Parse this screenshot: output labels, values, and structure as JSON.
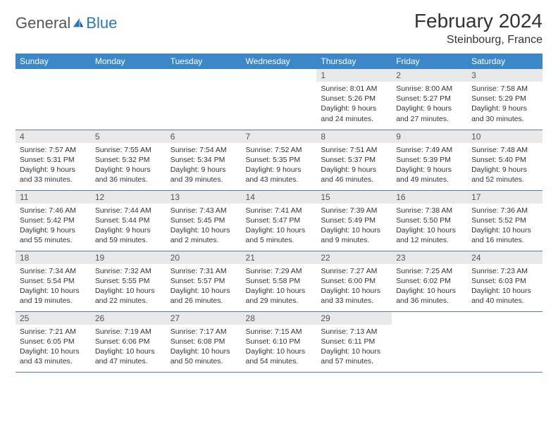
{
  "brand": {
    "part1": "General",
    "part2": "Blue"
  },
  "title": "February 2024",
  "location": "Steinbourg, France",
  "colors": {
    "header_bg": "#3b87c8",
    "header_text": "#ffffff",
    "daynum_bg": "#e9e9e9",
    "daynum_text": "#555555",
    "body_text": "#333333",
    "row_border": "#5a7a9a",
    "brand_gray": "#555555",
    "brand_blue": "#2b7ac0",
    "page_bg": "#ffffff"
  },
  "fonts": {
    "title_size": 28,
    "location_size": 16,
    "dayhead_size": 12,
    "daynum_size": 12,
    "cell_size": 10.5
  },
  "day_headers": [
    "Sunday",
    "Monday",
    "Tuesday",
    "Wednesday",
    "Thursday",
    "Friday",
    "Saturday"
  ],
  "weeks": [
    [
      null,
      null,
      null,
      null,
      {
        "num": "1",
        "sunrise": "8:01 AM",
        "sunset": "5:26 PM",
        "daylight": "9 hours and 24 minutes."
      },
      {
        "num": "2",
        "sunrise": "8:00 AM",
        "sunset": "5:27 PM",
        "daylight": "9 hours and 27 minutes."
      },
      {
        "num": "3",
        "sunrise": "7:58 AM",
        "sunset": "5:29 PM",
        "daylight": "9 hours and 30 minutes."
      }
    ],
    [
      {
        "num": "4",
        "sunrise": "7:57 AM",
        "sunset": "5:31 PM",
        "daylight": "9 hours and 33 minutes."
      },
      {
        "num": "5",
        "sunrise": "7:55 AM",
        "sunset": "5:32 PM",
        "daylight": "9 hours and 36 minutes."
      },
      {
        "num": "6",
        "sunrise": "7:54 AM",
        "sunset": "5:34 PM",
        "daylight": "9 hours and 39 minutes."
      },
      {
        "num": "7",
        "sunrise": "7:52 AM",
        "sunset": "5:35 PM",
        "daylight": "9 hours and 43 minutes."
      },
      {
        "num": "8",
        "sunrise": "7:51 AM",
        "sunset": "5:37 PM",
        "daylight": "9 hours and 46 minutes."
      },
      {
        "num": "9",
        "sunrise": "7:49 AM",
        "sunset": "5:39 PM",
        "daylight": "9 hours and 49 minutes."
      },
      {
        "num": "10",
        "sunrise": "7:48 AM",
        "sunset": "5:40 PM",
        "daylight": "9 hours and 52 minutes."
      }
    ],
    [
      {
        "num": "11",
        "sunrise": "7:46 AM",
        "sunset": "5:42 PM",
        "daylight": "9 hours and 55 minutes."
      },
      {
        "num": "12",
        "sunrise": "7:44 AM",
        "sunset": "5:44 PM",
        "daylight": "9 hours and 59 minutes."
      },
      {
        "num": "13",
        "sunrise": "7:43 AM",
        "sunset": "5:45 PM",
        "daylight": "10 hours and 2 minutes."
      },
      {
        "num": "14",
        "sunrise": "7:41 AM",
        "sunset": "5:47 PM",
        "daylight": "10 hours and 5 minutes."
      },
      {
        "num": "15",
        "sunrise": "7:39 AM",
        "sunset": "5:49 PM",
        "daylight": "10 hours and 9 minutes."
      },
      {
        "num": "16",
        "sunrise": "7:38 AM",
        "sunset": "5:50 PM",
        "daylight": "10 hours and 12 minutes."
      },
      {
        "num": "17",
        "sunrise": "7:36 AM",
        "sunset": "5:52 PM",
        "daylight": "10 hours and 16 minutes."
      }
    ],
    [
      {
        "num": "18",
        "sunrise": "7:34 AM",
        "sunset": "5:54 PM",
        "daylight": "10 hours and 19 minutes."
      },
      {
        "num": "19",
        "sunrise": "7:32 AM",
        "sunset": "5:55 PM",
        "daylight": "10 hours and 22 minutes."
      },
      {
        "num": "20",
        "sunrise": "7:31 AM",
        "sunset": "5:57 PM",
        "daylight": "10 hours and 26 minutes."
      },
      {
        "num": "21",
        "sunrise": "7:29 AM",
        "sunset": "5:58 PM",
        "daylight": "10 hours and 29 minutes."
      },
      {
        "num": "22",
        "sunrise": "7:27 AM",
        "sunset": "6:00 PM",
        "daylight": "10 hours and 33 minutes."
      },
      {
        "num": "23",
        "sunrise": "7:25 AM",
        "sunset": "6:02 PM",
        "daylight": "10 hours and 36 minutes."
      },
      {
        "num": "24",
        "sunrise": "7:23 AM",
        "sunset": "6:03 PM",
        "daylight": "10 hours and 40 minutes."
      }
    ],
    [
      {
        "num": "25",
        "sunrise": "7:21 AM",
        "sunset": "6:05 PM",
        "daylight": "10 hours and 43 minutes."
      },
      {
        "num": "26",
        "sunrise": "7:19 AM",
        "sunset": "6:06 PM",
        "daylight": "10 hours and 47 minutes."
      },
      {
        "num": "27",
        "sunrise": "7:17 AM",
        "sunset": "6:08 PM",
        "daylight": "10 hours and 50 minutes."
      },
      {
        "num": "28",
        "sunrise": "7:15 AM",
        "sunset": "6:10 PM",
        "daylight": "10 hours and 54 minutes."
      },
      {
        "num": "29",
        "sunrise": "7:13 AM",
        "sunset": "6:11 PM",
        "daylight": "10 hours and 57 minutes."
      },
      null,
      null
    ]
  ],
  "labels": {
    "sunrise": "Sunrise:",
    "sunset": "Sunset:",
    "daylight": "Daylight:"
  }
}
